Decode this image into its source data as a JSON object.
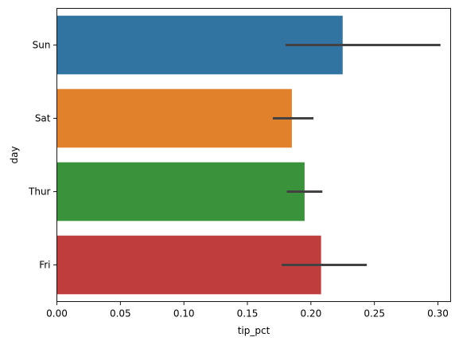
{
  "chart_data": {
    "type": "bar",
    "orientation": "horizontal",
    "xlabel": "tip_pct",
    "ylabel": "day",
    "xlim": [
      0.0,
      0.31
    ],
    "xticks": [
      0.0,
      0.05,
      0.1,
      0.15,
      0.2,
      0.25,
      0.3
    ],
    "xtick_labels": [
      "0.00",
      "0.05",
      "0.10",
      "0.15",
      "0.20",
      "0.25",
      "0.30"
    ],
    "categories": [
      "Sun",
      "Sat",
      "Thur",
      "Fri"
    ],
    "values": [
      0.225,
      0.185,
      0.195,
      0.208
    ],
    "error_low": [
      0.18,
      0.17,
      0.181,
      0.177
    ],
    "error_high": [
      0.302,
      0.202,
      0.209,
      0.244
    ],
    "colors": [
      "#3274a1",
      "#e1812c",
      "#3a923a",
      "#c03d3e"
    ],
    "error_color": "#424242",
    "grid": false,
    "legend": "none"
  }
}
